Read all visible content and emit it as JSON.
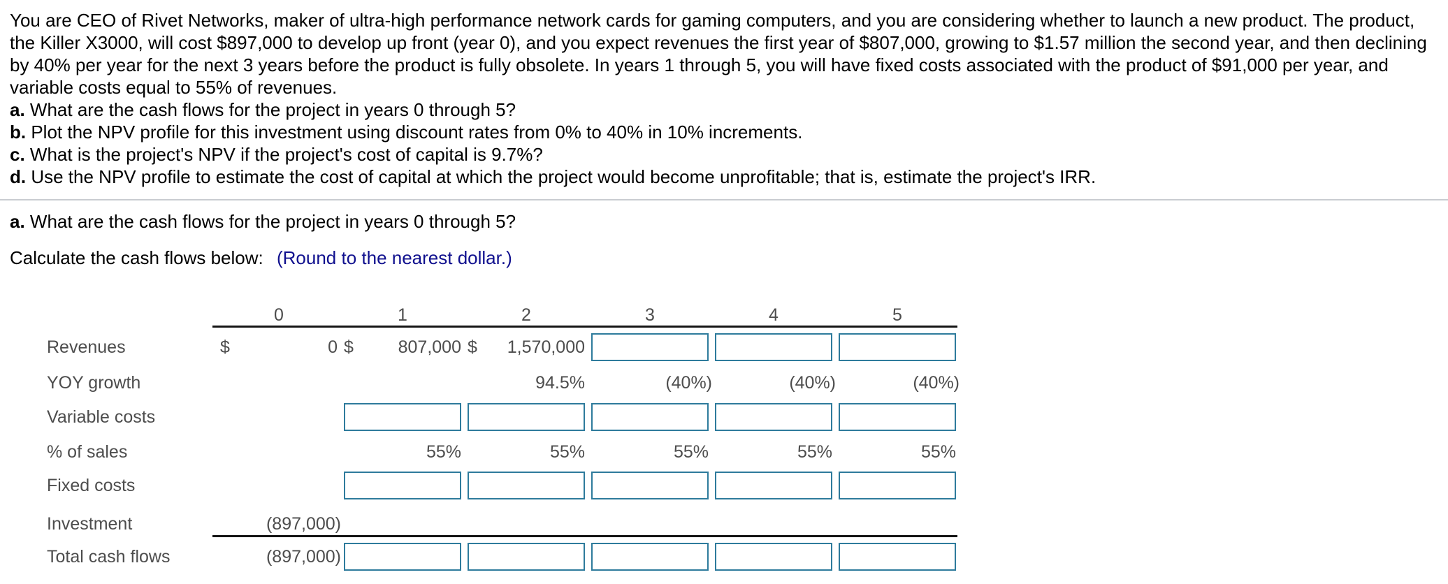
{
  "problem": {
    "paragraph_lines": [
      "You are CEO of Rivet Networks, maker of ultra-high performance network cards for gaming computers, and you are considering whether to launch a new product. The product,",
      "the Killer X3000, will cost $897,000 to develop up front (year 0), and you expect revenues the first year of $807,000, growing to $1.57 million the second year, and then declining",
      "by 40% per year for the next 3 years before the product is fully obsolete. In years 1 through 5, you will have fixed costs associated with the product of $91,000 per year, and",
      "variable costs equal to 55% of revenues."
    ],
    "questions": [
      {
        "label": "a.",
        "text": "What are the cash flows for the project in years 0 through 5?"
      },
      {
        "label": "b.",
        "text": "Plot the NPV profile for this investment using discount rates from 0% to 40% in 10% increments."
      },
      {
        "label": "c.",
        "text": "What is the project's NPV if the project's cost of capital is 9.7%?"
      },
      {
        "label": "d.",
        "text": "Use the NPV profile to estimate the cost of capital at which the project would become unprofitable; that is, estimate the project's IRR."
      }
    ]
  },
  "section_a": {
    "label": "a.",
    "question": "What are the cash flows for the project in years 0 through 5?",
    "instruction": "Calculate the cash flows below:",
    "note": "(Round to the nearest dollar.)"
  },
  "table": {
    "year_headers": [
      "0",
      "1",
      "2",
      "3",
      "4",
      "5"
    ],
    "rows": {
      "revenues": {
        "label": "Revenues",
        "currency_symbol": "$",
        "values": [
          "0",
          "807,000",
          "1,570,000"
        ]
      },
      "yoy_growth": {
        "label": "YOY growth",
        "values": {
          "year2": "94.5%",
          "year3": "(40%)",
          "year4": "(40%)",
          "year5": "(40%)"
        }
      },
      "variable_costs": {
        "label": "Variable costs"
      },
      "pct_of_sales": {
        "label": "% of sales",
        "values": [
          "55%",
          "55%",
          "55%",
          "55%",
          "55%"
        ]
      },
      "fixed_costs": {
        "label": "Fixed costs"
      },
      "investment": {
        "label": "Investment",
        "value": "(897,000)"
      },
      "total_cash_flows": {
        "label": "Total cash flows",
        "value": "(897,000)"
      }
    },
    "input_value": ""
  },
  "colors": {
    "input_border": "#2e7b9c",
    "note_blue": "#10108e",
    "table_text": "#4d4d4d",
    "divider": "#c9ccd1",
    "rule_black": "#141414"
  }
}
